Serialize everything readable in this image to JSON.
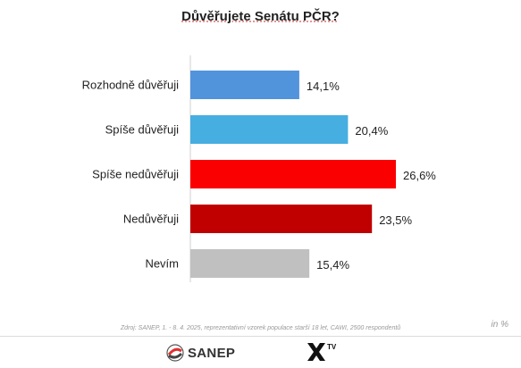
{
  "title": "Důvěřujete Senátu PČR?",
  "unit_note": "in %",
  "source": "Zdroj: SANEP, 1. - 8. 4. 2025, reprezentativní vzorek populace starší 18 let, CAWI, 2500 respondentů",
  "logos": {
    "sanep": "SANEP",
    "xtv_sup": "TV"
  },
  "chart_data": {
    "type": "bar",
    "orientation": "horizontal",
    "categories": [
      "Rozhodně důvěřuji",
      "Spíše důvěřuji",
      "Spíše nedůvěřuji",
      "Nedůvěřuji",
      "Nevím"
    ],
    "values": [
      14.1,
      20.4,
      26.6,
      23.5,
      15.4
    ],
    "value_labels": [
      "14,1%",
      "20,4%",
      "26,6%",
      "23,5%",
      "15,4%"
    ],
    "colors": [
      "#5294dc",
      "#46aee0",
      "#fb0000",
      "#c00000",
      "#c0c0c0"
    ],
    "xlim": [
      0,
      26.6
    ],
    "grid": false,
    "legend": "none"
  }
}
